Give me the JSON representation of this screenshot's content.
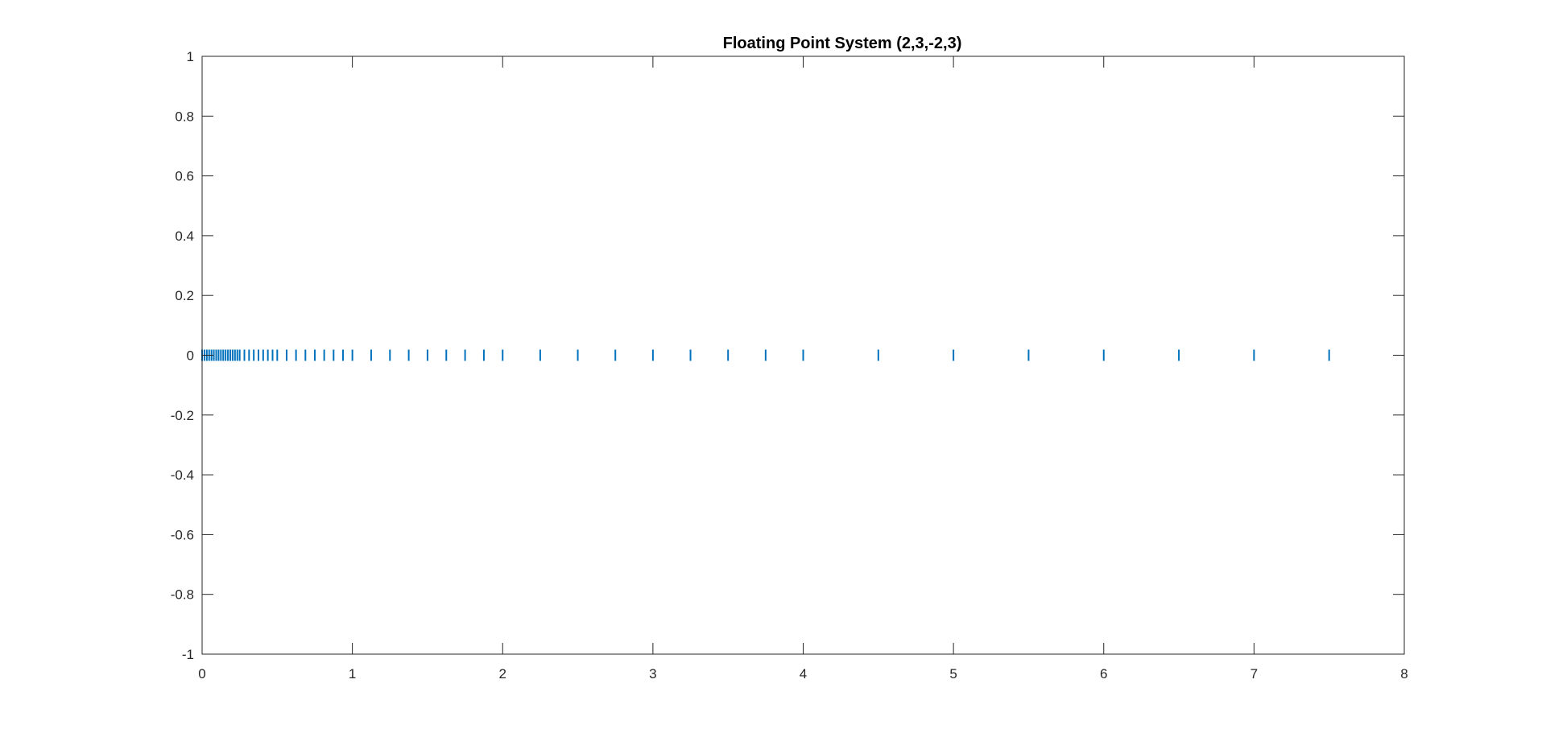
{
  "chart_data": {
    "type": "scatter",
    "title": "Floating Point System (2,3,-2,3)",
    "xlabel": "",
    "ylabel": "",
    "xlim": [
      0,
      8
    ],
    "ylim": [
      -1,
      1
    ],
    "x_ticks": [
      "0",
      "1",
      "2",
      "3",
      "4",
      "5",
      "6",
      "7",
      "8"
    ],
    "y_ticks": [
      "1",
      "0.8",
      "0.6",
      "0.4",
      "0.2",
      "0",
      "-0.2",
      "-0.4",
      "-0.6",
      "-0.8",
      "-1"
    ],
    "grid": false,
    "legend": "none",
    "marker": "vertical-line",
    "series_color": "#0072BD",
    "series": [
      {
        "x": [
          0,
          0.0156,
          0.0313,
          0.0469,
          0.0625,
          0.0781,
          0.0938,
          0.1094,
          0.125,
          0.1406,
          0.1563,
          0.1719,
          0.1875,
          0.2031,
          0.2188,
          0.2344,
          0.25,
          0.2813,
          0.3125,
          0.3438,
          0.375,
          0.4063,
          0.4375,
          0.4688,
          0.5,
          0.5625,
          0.625,
          0.6875,
          0.75,
          0.8125,
          0.875,
          0.9375,
          1,
          1.125,
          1.25,
          1.375,
          1.5,
          1.625,
          1.75,
          1.875,
          2,
          2.25,
          2.5,
          2.75,
          3,
          3.25,
          3.5,
          3.75,
          4,
          4.5,
          5,
          5.5,
          6,
          6.5,
          7,
          7.5
        ],
        "y": [
          0,
          0,
          0,
          0,
          0,
          0,
          0,
          0,
          0,
          0,
          0,
          0,
          0,
          0,
          0,
          0,
          0,
          0,
          0,
          0,
          0,
          0,
          0,
          0,
          0,
          0,
          0,
          0,
          0,
          0,
          0,
          0,
          0,
          0,
          0,
          0,
          0,
          0,
          0,
          0,
          0,
          0,
          0,
          0,
          0,
          0,
          0,
          0,
          0,
          0,
          0,
          0,
          0,
          0,
          0,
          0
        ]
      }
    ]
  }
}
